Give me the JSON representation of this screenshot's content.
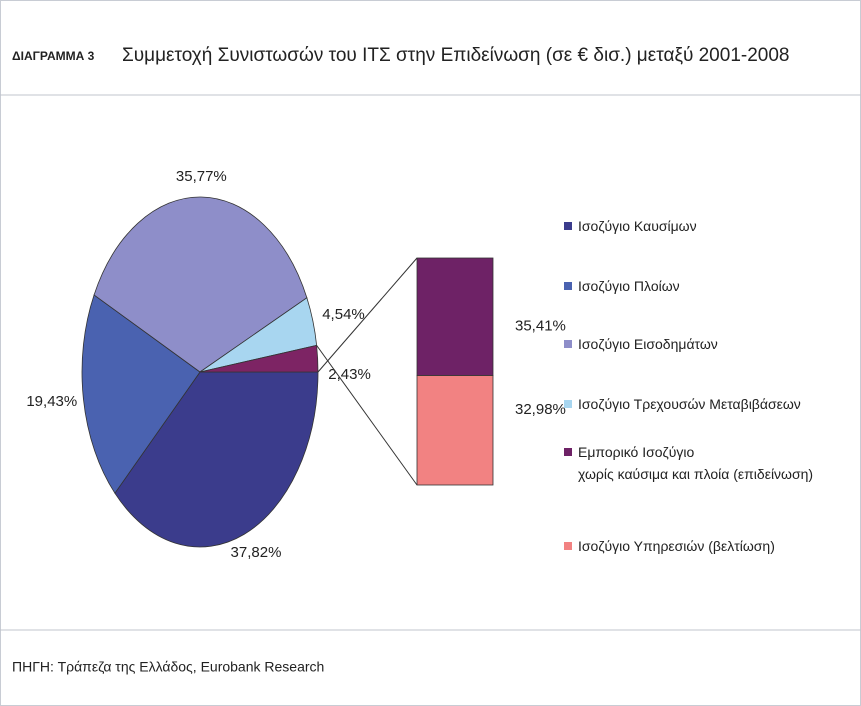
{
  "chart_data": {
    "type": "pie_of_bar",
    "title_prefix": "ΔΙΑΓΡΑΜΜΑ 3",
    "title": "Συμμετοχή Συνιστωσών του ΙΤΣ στην Επιδείνωση (σε € δισ.) μεταξύ 2001-2008",
    "source": "ΠΗΓΗ: Τράπεζα της Ελλάδος, Eurobank Research",
    "categories": [
      "Ισοζύγιο Καυσίμων",
      "Ισοζύγιο Πλοίων",
      "Ισοζύγιο Εισοδημάτων",
      "Ισοζύγιο Τρεχουσών Μεταβιβάσεων",
      null
    ],
    "values": [
      37.82,
      19.43,
      35.77,
      4.54,
      2.43
    ],
    "value_labels": [
      "37,82%",
      "19,43%",
      "35,77%",
      "4,54%",
      "2,43%"
    ],
    "colors": [
      "#3b3c8c",
      "#4a62b0",
      "#8e8ec9",
      "#a8d6f0",
      "#7d2464"
    ],
    "bar_series": [
      {
        "name": "Εμπορικό Ισοζύγιο\nχωρίς καύσιμα και πλοία (επιδείνωση)",
        "color": "#6e2266",
        "values": [
          35.41
        ],
        "value_labels": [
          "35,41%"
        ]
      },
      {
        "name": "Ισοζύγιο Υπηρεσιών (βελτίωση)",
        "color": "#f28282",
        "values": [
          32.98
        ],
        "value_labels": [
          "32,98%"
        ]
      }
    ]
  }
}
